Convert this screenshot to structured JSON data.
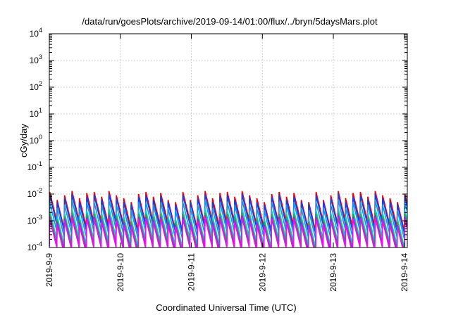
{
  "chart_data": {
    "type": "line",
    "title": "/data/run/goesPlots/archive/2019-09-14/01:00/flux/../bryn/5daysMars.plot",
    "xlabel": "Coordinated Universal Time (UTC)",
    "ylabel": "cGy/day",
    "y_scale": "log",
    "ylim": [
      0.0001,
      10000
    ],
    "xlim": [
      "2019-9-9",
      "2019-9-14 01:00"
    ],
    "y_ticks": [
      {
        "mantissa": "10",
        "exp": "-4"
      },
      {
        "mantissa": "10",
        "exp": "-3"
      },
      {
        "mantissa": "10",
        "exp": "-2"
      },
      {
        "mantissa": "10",
        "exp": "-1"
      },
      {
        "mantissa": "10",
        "exp": "0"
      },
      {
        "mantissa": "10",
        "exp": "1"
      },
      {
        "mantissa": "10",
        "exp": "2"
      },
      {
        "mantissa": "10",
        "exp": "3"
      },
      {
        "mantissa": "10",
        "exp": "4"
      }
    ],
    "x_ticks": [
      "2019-9-9",
      "2019-9-10",
      "2019-9-11",
      "2019-9-12",
      "2019-9-13",
      "2019-9-14"
    ],
    "grid": true,
    "sawtooth_period_hours": 2.5,
    "series": [
      {
        "color": "#e8000b",
        "values": [
          0.012,
          0.006,
          0.009,
          0.013,
          0.007,
          0.011,
          0.012,
          0.008,
          0.013,
          0.009,
          0.007,
          0.005,
          0.01,
          0.012,
          0.008,
          0.011,
          0.006,
          0.005
        ]
      },
      {
        "color": "#1a3fe0",
        "values": [
          0.009,
          0.005,
          0.007,
          0.01,
          0.005,
          0.008,
          0.009,
          0.006,
          0.01,
          0.007,
          0.005,
          0.004,
          0.008,
          0.009,
          0.006,
          0.008,
          0.005,
          0.004
        ]
      },
      {
        "color": "#1e8ee8",
        "values": [
          0.005,
          0.003,
          0.004,
          0.006,
          0.003,
          0.005,
          0.005,
          0.004,
          0.006,
          0.004,
          0.003,
          0.0025,
          0.005,
          0.005,
          0.004,
          0.005,
          0.003,
          0.0025
        ]
      },
      {
        "color": "#13c8d8",
        "values": [
          0.0025,
          0.0015,
          0.002,
          0.003,
          0.0015,
          0.0025,
          0.0025,
          0.002,
          0.003,
          0.002,
          0.0015,
          0.0012,
          0.0025,
          0.0025,
          0.002,
          0.0025,
          0.0015,
          0.0012
        ]
      },
      {
        "color": "#1fae4a",
        "values": [
          0.0018,
          0.0011,
          0.0015,
          0.002,
          0.0011,
          0.0018,
          0.0018,
          0.0014,
          0.002,
          0.0015,
          0.0011,
          0.0009,
          0.0018,
          0.0018,
          0.0014,
          0.0018,
          0.0011,
          0.0009
        ]
      },
      {
        "color": "#8c2be2",
        "values": [
          0.0014,
          0.0009,
          0.0012,
          0.0016,
          0.0009,
          0.0014,
          0.0014,
          0.0011,
          0.0016,
          0.0012,
          0.0009,
          0.0007,
          0.0014,
          0.0014,
          0.0011,
          0.0014,
          0.0009,
          0.0007
        ]
      },
      {
        "color": "#ee10ee",
        "values": [
          0.0012,
          0.0007,
          0.001,
          0.0013,
          0.0007,
          0.0012,
          0.0012,
          0.0009,
          0.0013,
          0.001,
          0.0007,
          0.0006,
          0.0012,
          0.0012,
          0.0009,
          0.0012,
          0.0007,
          0.0006
        ]
      }
    ]
  }
}
